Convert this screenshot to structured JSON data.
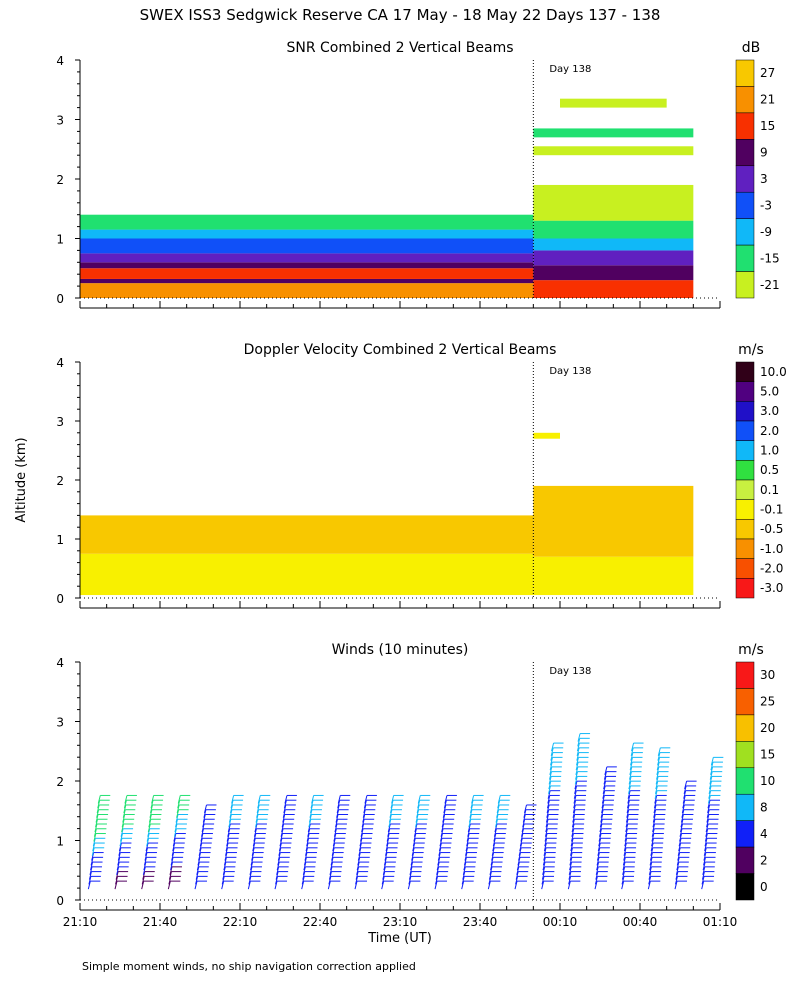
{
  "page_title": "SWEX ISS3 Sedgwick Reserve CA  17 May - 18 May 22 Days 137 - 138",
  "footnote": "Simple moment winds, no ship navigation correction applied",
  "common": {
    "ylabel": "Altitude (km)",
    "xlabel": "Time (UT)",
    "y_ticks": [
      "0",
      "1",
      "2",
      "3",
      "4"
    ],
    "x_ticks": [
      "21:10",
      "21:40",
      "22:10",
      "22:40",
      "23:10",
      "23:40",
      "00:10",
      "00:40",
      "01:10"
    ],
    "day_marker_label": "Day 138"
  },
  "chart_data": [
    {
      "type": "heatmap",
      "title": "SNR Combined 2 Vertical Beams",
      "colorbar_unit": "dB",
      "colorbar_labels": [
        "27",
        "21",
        "15",
        "9",
        "3",
        "-3",
        "-9",
        "-15",
        "-21"
      ],
      "colorbar_colors": [
        "#f8c800",
        "#f89000",
        "#f83000",
        "#500060",
        "#6020c0",
        "#1050f8",
        "#10b8f8",
        "#20e070",
        "#c8f020"
      ],
      "xlim": [
        "21:10",
        "01:10"
      ],
      "ylim": [
        0,
        4
      ],
      "day_boundary": "00:00",
      "layers": [
        {
          "from_time": "21:10",
          "to_time": "00:00",
          "bottom_km": 0.0,
          "top_km": 0.25,
          "color": "#f89000"
        },
        {
          "from_time": "21:10",
          "to_time": "00:00",
          "bottom_km": 0.25,
          "top_km": 0.32,
          "color": "#500060"
        },
        {
          "from_time": "21:10",
          "to_time": "00:00",
          "bottom_km": 0.32,
          "top_km": 0.5,
          "color": "#f83000"
        },
        {
          "from_time": "21:10",
          "to_time": "00:00",
          "bottom_km": 0.5,
          "top_km": 0.6,
          "color": "#500060"
        },
        {
          "from_time": "21:10",
          "to_time": "00:00",
          "bottom_km": 0.6,
          "top_km": 0.75,
          "color": "#6020c0"
        },
        {
          "from_time": "21:10",
          "to_time": "00:00",
          "bottom_km": 0.75,
          "top_km": 1.0,
          "color": "#1050f8"
        },
        {
          "from_time": "21:10",
          "to_time": "00:00",
          "bottom_km": 1.0,
          "top_km": 1.15,
          "color": "#10b8f8"
        },
        {
          "from_time": "21:10",
          "to_time": "00:00",
          "bottom_km": 1.15,
          "top_km": 1.4,
          "color": "#20e070"
        },
        {
          "from_time": "00:00",
          "to_time": "01:00",
          "bottom_km": 0.0,
          "top_km": 0.3,
          "color": "#f83000"
        },
        {
          "from_time": "00:00",
          "to_time": "01:00",
          "bottom_km": 0.3,
          "top_km": 0.55,
          "color": "#500060"
        },
        {
          "from_time": "00:00",
          "to_time": "01:00",
          "bottom_km": 0.55,
          "top_km": 0.8,
          "color": "#6020c0"
        },
        {
          "from_time": "00:00",
          "to_time": "01:00",
          "bottom_km": 0.8,
          "top_km": 1.0,
          "color": "#10b8f8"
        },
        {
          "from_time": "00:00",
          "to_time": "01:00",
          "bottom_km": 1.0,
          "top_km": 1.3,
          "color": "#20e070"
        },
        {
          "from_time": "00:00",
          "to_time": "01:00",
          "bottom_km": 1.3,
          "top_km": 1.9,
          "color": "#c8f020"
        },
        {
          "from_time": "00:00",
          "to_time": "01:00",
          "bottom_km": 2.7,
          "top_km": 2.85,
          "color": "#20e070"
        },
        {
          "from_time": "00:00",
          "to_time": "01:00",
          "bottom_km": 2.4,
          "top_km": 2.55,
          "color": "#c8f020"
        },
        {
          "from_time": "00:10",
          "to_time": "00:50",
          "bottom_km": 3.2,
          "top_km": 3.35,
          "color": "#c8f020"
        }
      ]
    },
    {
      "type": "heatmap",
      "title": "Doppler Velocity Combined 2 Vertical Beams",
      "colorbar_unit": "m/s",
      "colorbar_labels": [
        "10.0",
        "5.0",
        "3.0",
        "2.0",
        "1.0",
        "0.5",
        "0.1",
        "-0.1",
        "-0.5",
        "-1.0",
        "-2.0",
        "-3.0"
      ],
      "colorbar_colors": [
        "#300018",
        "#500080",
        "#2010c8",
        "#1050f8",
        "#10b8f8",
        "#30e040",
        "#c8f040",
        "#f8f000",
        "#f8c800",
        "#f89000",
        "#f85000",
        "#f81818"
      ],
      "xlim": [
        "21:10",
        "01:10"
      ],
      "ylim": [
        0,
        4
      ],
      "day_boundary": "00:00",
      "layers": [
        {
          "from_time": "21:10",
          "to_time": "00:00",
          "bottom_km": 0.05,
          "top_km": 0.75,
          "color": "#f8f000"
        },
        {
          "from_time": "21:10",
          "to_time": "00:00",
          "bottom_km": 0.75,
          "top_km": 1.4,
          "color": "#f8c800"
        },
        {
          "from_time": "00:00",
          "to_time": "01:00",
          "bottom_km": 0.05,
          "top_km": 0.7,
          "color": "#f8f000"
        },
        {
          "from_time": "00:00",
          "to_time": "01:00",
          "bottom_km": 0.7,
          "top_km": 1.9,
          "color": "#f8c800"
        },
        {
          "from_time": "00:00",
          "to_time": "00:10",
          "bottom_km": 2.7,
          "top_km": 2.8,
          "color": "#f8f000"
        }
      ]
    },
    {
      "type": "scatter",
      "title": "Winds (10 minutes)",
      "colorbar_unit": "m/s",
      "colorbar_labels": [
        "30",
        "25",
        "20",
        "15",
        "10",
        "8",
        "4",
        "2",
        "0"
      ],
      "colorbar_colors": [
        "#f81818",
        "#f86000",
        "#f8c000",
        "#a0e020",
        "#20e070",
        "#10b8f8",
        "#1020f8",
        "#500060",
        "#000000"
      ],
      "xlim": [
        "21:10",
        "01:10"
      ],
      "ylim": [
        0,
        4
      ],
      "day_boundary": "00:00",
      "wind_profiles": [
        {
          "time": "21:15",
          "top_km": 1.7,
          "speed_low": 4,
          "speed_high": 15
        },
        {
          "time": "21:25",
          "top_km": 1.7,
          "speed_low": 2,
          "speed_high": 15
        },
        {
          "time": "21:35",
          "top_km": 1.7,
          "speed_low": 2,
          "speed_high": 15
        },
        {
          "time": "21:45",
          "top_km": 1.7,
          "speed_low": 2,
          "speed_high": 12
        },
        {
          "time": "21:55",
          "top_km": 1.6,
          "speed_low": 4,
          "speed_high": 8
        },
        {
          "time": "22:05",
          "top_km": 1.7,
          "speed_low": 4,
          "speed_high": 10
        },
        {
          "time": "22:15",
          "top_km": 1.7,
          "speed_low": 4,
          "speed_high": 10
        },
        {
          "time": "22:25",
          "top_km": 1.7,
          "speed_low": 4,
          "speed_high": 8
        },
        {
          "time": "22:35",
          "top_km": 1.7,
          "speed_low": 4,
          "speed_high": 10
        },
        {
          "time": "22:45",
          "top_km": 1.7,
          "speed_low": 4,
          "speed_high": 8
        },
        {
          "time": "22:55",
          "top_km": 1.7,
          "speed_low": 4,
          "speed_high": 8
        },
        {
          "time": "23:05",
          "top_km": 1.7,
          "speed_low": 4,
          "speed_high": 10
        },
        {
          "time": "23:15",
          "top_km": 1.7,
          "speed_low": 4,
          "speed_high": 10
        },
        {
          "time": "23:25",
          "top_km": 1.7,
          "speed_low": 4,
          "speed_high": 8
        },
        {
          "time": "23:35",
          "top_km": 1.7,
          "speed_low": 4,
          "speed_high": 10
        },
        {
          "time": "23:45",
          "top_km": 1.7,
          "speed_low": 4,
          "speed_high": 10
        },
        {
          "time": "23:55",
          "top_km": 1.6,
          "speed_low": 4,
          "speed_high": 8
        },
        {
          "time": "00:05",
          "top_km": 2.6,
          "speed_low": 4,
          "speed_high": 10
        },
        {
          "time": "00:15",
          "top_km": 2.8,
          "speed_low": 4,
          "speed_high": 10
        },
        {
          "time": "00:25",
          "top_km": 2.2,
          "speed_low": 4,
          "speed_high": 8
        },
        {
          "time": "00:35",
          "top_km": 2.6,
          "speed_low": 4,
          "speed_high": 10
        },
        {
          "time": "00:45",
          "top_km": 2.5,
          "speed_low": 4,
          "speed_high": 10
        },
        {
          "time": "00:55",
          "top_km": 2.0,
          "speed_low": 4,
          "speed_high": 8
        },
        {
          "time": "01:05",
          "top_km": 2.4,
          "speed_low": 4,
          "speed_high": 10
        }
      ]
    }
  ]
}
